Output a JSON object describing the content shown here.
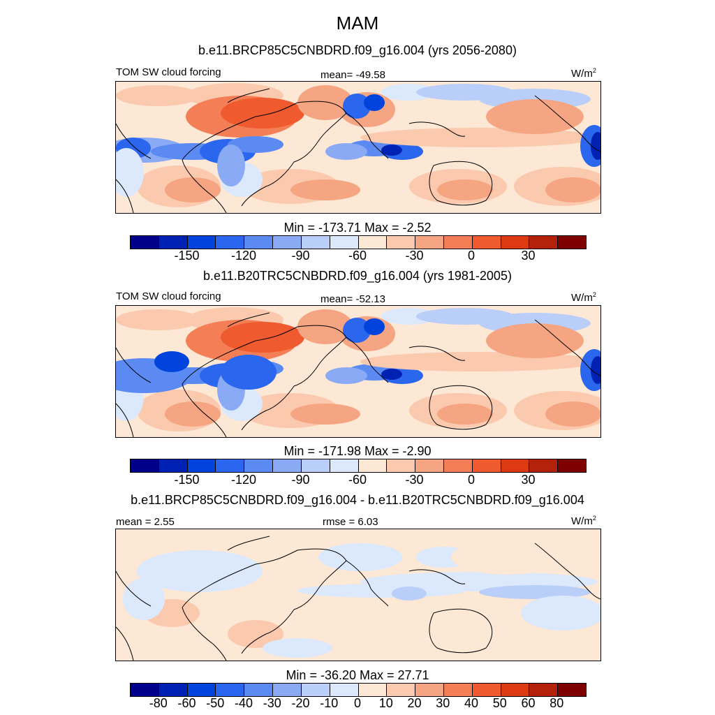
{
  "title": "MAM",
  "colors": {
    "fields_palette": [
      "#00008a",
      "#0022b4",
      "#0044dd",
      "#2a66ee",
      "#5a8af2",
      "#8aaaf5",
      "#b9cef8",
      "#dce8fb",
      "#fde8d6",
      "#fbc9ad",
      "#f6a582",
      "#f47f56",
      "#ef5b2e",
      "#db3a12",
      "#b5220c",
      "#7e0000"
    ],
    "diff_palette": [
      "#00008a",
      "#0022b4",
      "#0044dd",
      "#2a66ee",
      "#5a8af2",
      "#8aaaf5",
      "#b9cef8",
      "#dce8fb",
      "#fde8d6",
      "#fbc9ad",
      "#f6a582",
      "#f47f56",
      "#ef5b2e",
      "#db3a12",
      "#b5220c",
      "#7e0000"
    ]
  },
  "panel1": {
    "subtitle": "b.e11.BRCP85C5CNBDRD.f09_g16.004 (yrs 2056-2080)",
    "left_label": "TOM SW cloud forcing",
    "mean_label": "mean= -49.58",
    "units": "W/m",
    "units_sup": "2",
    "minmax": "Min = -173.71 Max =  -2.52",
    "ticks": [
      "-150",
      "-120",
      "-90",
      "-60",
      "-30",
      "0",
      "30"
    ]
  },
  "panel2": {
    "subtitle": "b.e11.B20TRC5CNBDRD.f09_g16.004 (yrs 1981-2005)",
    "left_label": "TOM SW cloud forcing",
    "mean_label": "mean= -52.13",
    "units": "W/m",
    "units_sup": "2",
    "minmax": "Min = -171.98 Max =  -2.90",
    "ticks": [
      "-150",
      "-120",
      "-90",
      "-60",
      "-30",
      "0",
      "30"
    ]
  },
  "panel3": {
    "subtitle": "b.e11.BRCP85C5CNBDRD.f09_g16.004 - b.e11.B20TRC5CNBDRD.f09_g16.004",
    "mean_label": "mean =   2.55",
    "rmse_label": "rmse =   6.03",
    "units": "W/m",
    "units_sup": "2",
    "minmax": "Min = -36.20 Max =  27.71",
    "ticks": [
      "-80",
      "-60",
      "-50",
      "-40",
      "-30",
      "-20",
      "-10",
      "0",
      "10",
      "20",
      "30",
      "40",
      "50",
      "60",
      "80"
    ]
  }
}
